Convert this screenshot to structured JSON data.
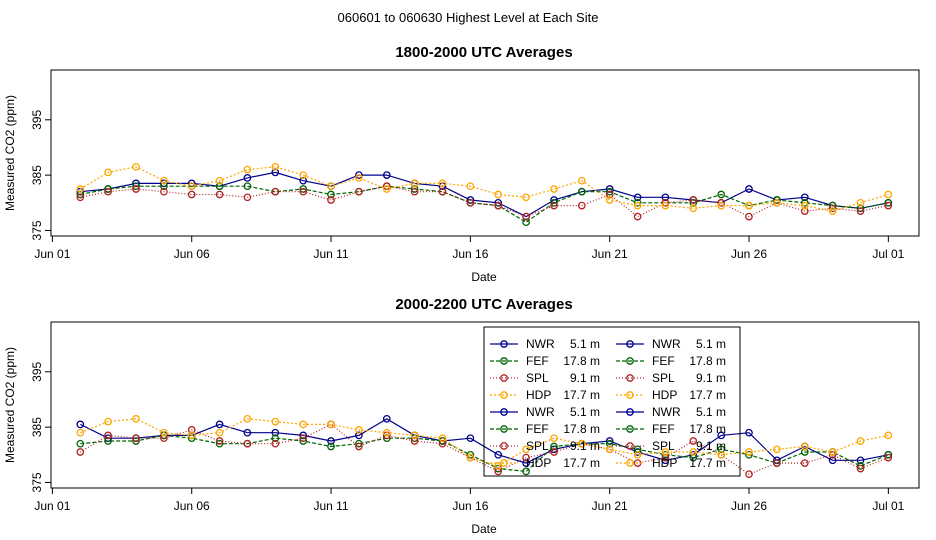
{
  "figure_title": "060601  to  060630 Highest Level at Each Site",
  "chart_data": [
    {
      "type": "line",
      "title": "1800-2000 UTC Averages",
      "xlabel": "Date",
      "ylabel": "Measured CO2 (ppm)",
      "x_ticks": [
        {
          "day": 1,
          "label": "Jun 01"
        },
        {
          "day": 6,
          "label": "Jun 06"
        },
        {
          "day": 11,
          "label": "Jun 11"
        },
        {
          "day": 16,
          "label": "Jun 16"
        },
        {
          "day": 21,
          "label": "Jun 21"
        },
        {
          "day": 26,
          "label": "Jun 26"
        },
        {
          "day": 31,
          "label": "Jul 01"
        }
      ],
      "y_ticks": [
        375,
        385,
        395
      ],
      "xlim": [
        0.95,
        32.1
      ],
      "ylim": [
        374,
        404
      ],
      "x": [
        2,
        3,
        4,
        5,
        6,
        7,
        8,
        9,
        10,
        11,
        12,
        13,
        14,
        15,
        16,
        17,
        18,
        19,
        20,
        21,
        22,
        23,
        24,
        25,
        26,
        27,
        28,
        29,
        30,
        31
      ],
      "series": [
        {
          "name": "NWR",
          "height": "5.1 m",
          "color": "#00008B",
          "dash": "",
          "values": [
            382,
            382.5,
            383.5,
            383.5,
            383.5,
            383,
            384.5,
            385.5,
            384,
            383,
            385,
            385,
            383.5,
            383,
            380.5,
            380,
            377.5,
            380.5,
            382,
            382.5,
            381,
            381,
            380.5,
            380,
            382.5,
            380.5,
            381,
            379.5,
            379,
            380
          ]
        },
        {
          "name": "FEF",
          "height": "17.8 m",
          "color": "#006400",
          "dash": "4,2",
          "values": [
            381.5,
            382.5,
            383,
            383,
            383,
            383,
            383,
            382,
            382.5,
            381.5,
            382,
            383,
            382.5,
            382,
            380,
            379.5,
            376.5,
            380,
            382,
            382,
            380,
            380,
            380,
            381.5,
            379.5,
            380.5,
            380,
            379.5,
            379,
            380
          ]
        },
        {
          "name": "SPL",
          "height": "9.1 m",
          "color": "#B22222",
          "dash": "1,2",
          "values": [
            381,
            382,
            382.5,
            382,
            381.5,
            381.5,
            381,
            382,
            382,
            380.5,
            382,
            383,
            382,
            382,
            380,
            379.5,
            377.5,
            379.5,
            379.5,
            381.5,
            377.5,
            380,
            380.5,
            380,
            377.5,
            380,
            378.5,
            379,
            378.5,
            379.5
          ]
        },
        {
          "name": "HDP",
          "height": "17.7 m",
          "color": "#FFA500",
          "dash": "2,2",
          "values": [
            382.5,
            385.5,
            386.5,
            384,
            383,
            384,
            386,
            386.5,
            385,
            383,
            384.5,
            382.5,
            383.5,
            383.5,
            383,
            381.5,
            381,
            382.5,
            384,
            380.5,
            379.5,
            379.5,
            379,
            379.5,
            379.5,
            380,
            379.5,
            378.5,
            380,
            381.5
          ]
        }
      ]
    },
    {
      "type": "line",
      "title": "2000-2200 UTC Averages",
      "xlabel": "Date",
      "ylabel": "Measured CO2 (ppm)",
      "x_ticks": [
        {
          "day": 1,
          "label": "Jun 01"
        },
        {
          "day": 6,
          "label": "Jun 06"
        },
        {
          "day": 11,
          "label": "Jun 11"
        },
        {
          "day": 16,
          "label": "Jun 16"
        },
        {
          "day": 21,
          "label": "Jun 21"
        },
        {
          "day": 26,
          "label": "Jun 26"
        },
        {
          "day": 31,
          "label": "Jul 01"
        }
      ],
      "y_ticks": [
        375,
        385,
        395
      ],
      "xlim": [
        0.95,
        32.1
      ],
      "ylim": [
        374,
        404
      ],
      "x": [
        2,
        3,
        4,
        5,
        6,
        7,
        8,
        9,
        10,
        11,
        12,
        13,
        14,
        15,
        16,
        17,
        18,
        19,
        20,
        21,
        22,
        23,
        24,
        25,
        26,
        27,
        28,
        29,
        30,
        31
      ],
      "series": [
        {
          "name": "NWR",
          "height": "5.1 m",
          "color": "#00008B",
          "dash": "",
          "values": [
            385.5,
            383,
            383,
            383.5,
            383.5,
            385.5,
            384,
            384,
            383.5,
            382.5,
            383.5,
            386.5,
            383.5,
            382.5,
            383,
            380,
            378.5,
            381,
            382,
            382.5,
            380.5,
            379,
            380,
            383.5,
            384,
            379,
            381.5,
            379,
            379,
            380
          ]
        },
        {
          "name": "FEF",
          "height": "17.8 m",
          "color": "#006400",
          "dash": "4,2",
          "values": [
            382,
            382.5,
            382.5,
            383.5,
            383,
            382,
            382,
            383,
            382.5,
            381.5,
            382,
            383,
            383,
            382.5,
            380,
            377.5,
            377,
            381.5,
            382,
            382,
            381,
            380,
            379.5,
            381,
            380,
            378.5,
            380.5,
            380.5,
            378,
            380
          ]
        },
        {
          "name": "SPL",
          "height": "9.1 m",
          "color": "#B22222",
          "dash": "1,2",
          "values": [
            380.5,
            383.5,
            383,
            383,
            384.5,
            382.5,
            382,
            382,
            383,
            385.5,
            381.5,
            383.5,
            382.5,
            382,
            379.5,
            377,
            379.5,
            380.5,
            382,
            381,
            378.5,
            379.5,
            382.5,
            380,
            376.5,
            378.5,
            378.5,
            380,
            377.5,
            379.5
          ]
        },
        {
          "name": "HDP",
          "height": "17.7 m",
          "color": "#FFA500",
          "dash": "2,2",
          "values": [
            384,
            386,
            386.5,
            384,
            383.5,
            384,
            386.5,
            386,
            385.5,
            385.5,
            384.5,
            384,
            383.5,
            383,
            379.5,
            378,
            381,
            383,
            382,
            381,
            380,
            380.5,
            380.5,
            380,
            380.5,
            381,
            381.5,
            380.5,
            382.5,
            383.5
          ]
        }
      ],
      "legend": {
        "placement": "center-right",
        "columns": 2,
        "rows": 2
      }
    }
  ]
}
